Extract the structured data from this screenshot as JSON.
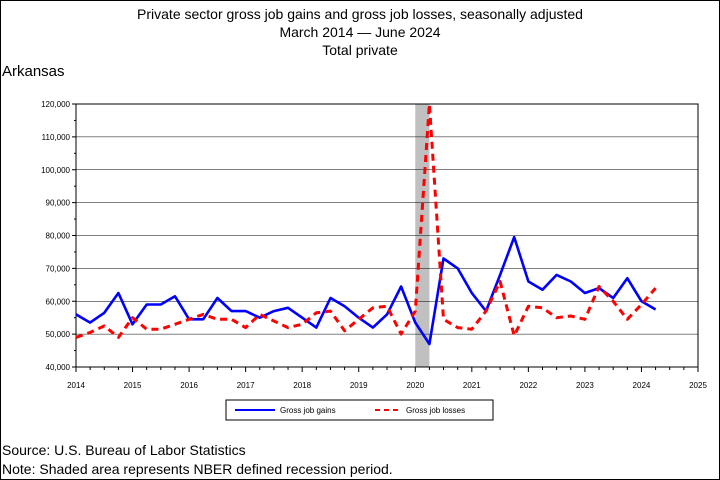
{
  "title": {
    "line1": "Private sector gross job gains and gross job losses, seasonally adjusted",
    "line2": "March 2014 — June 2024",
    "line3": "Total private"
  },
  "region": "Arkansas",
  "footer": {
    "source": "Source: U.S. Bureau of Labor Statistics",
    "note": "Note: Shaded area represents NBER defined recession period."
  },
  "chart_data": {
    "type": "line",
    "title": "Private sector gross job gains and gross job losses, seasonally adjusted",
    "xlabel": "",
    "ylabel": "",
    "xlim": [
      2014,
      2025
    ],
    "ylim": [
      40000,
      120000
    ],
    "x_ticks": [
      "2014",
      "2015",
      "2016",
      "2017",
      "2018",
      "2019",
      "2020",
      "2021",
      "2022",
      "2023",
      "2024",
      "2025"
    ],
    "y_ticks": [
      "40,000",
      "50,000",
      "60,000",
      "70,000",
      "80,000",
      "90,000",
      "100,000",
      "110,000",
      "120,000"
    ],
    "grid": "horizontal",
    "legend_position": "bottom",
    "recession": {
      "start": 2020.0,
      "end": 2020.25,
      "color": "#c0c0c0"
    },
    "x": [
      2014.0,
      2014.25,
      2014.5,
      2014.75,
      2015.0,
      2015.25,
      2015.5,
      2015.75,
      2016.0,
      2016.25,
      2016.5,
      2016.75,
      2017.0,
      2017.25,
      2017.5,
      2017.75,
      2018.0,
      2018.25,
      2018.5,
      2018.75,
      2019.0,
      2019.25,
      2019.5,
      2019.75,
      2020.0,
      2020.25,
      2020.5,
      2020.75,
      2021.0,
      2021.25,
      2021.5,
      2021.75,
      2022.0,
      2022.25,
      2022.5,
      2022.75,
      2023.0,
      2023.25,
      2023.5,
      2023.75,
      2024.0,
      2024.25
    ],
    "series": [
      {
        "name": "Gross job gains",
        "color": "#0000ff",
        "dash": "solid",
        "values": [
          56000,
          53500,
          56500,
          62500,
          53000,
          59000,
          59000,
          61500,
          54500,
          54500,
          61000,
          57000,
          57000,
          55000,
          57000,
          58000,
          55000,
          52000,
          61000,
          58500,
          55000,
          52000,
          56000,
          64500,
          53500,
          47000,
          73000,
          70000,
          62500,
          57000,
          68000,
          79500,
          66000,
          63500,
          68000,
          66000,
          62500,
          64000,
          61000,
          67000,
          60000,
          57500
        ]
      },
      {
        "name": "Gross job losses",
        "color": "#ff0000",
        "dash": "dashed",
        "values": [
          49000,
          50500,
          52500,
          49000,
          55000,
          51500,
          51500,
          53000,
          54500,
          56000,
          54500,
          54500,
          52000,
          56000,
          54000,
          52000,
          53000,
          56500,
          57000,
          51000,
          54500,
          58000,
          58500,
          50000,
          57000,
          120000,
          54500,
          52000,
          51500,
          57000,
          66000,
          49500,
          58500,
          58000,
          55000,
          55500,
          54500,
          64500,
          60000,
          54500,
          59000,
          64000
        ]
      }
    ]
  }
}
